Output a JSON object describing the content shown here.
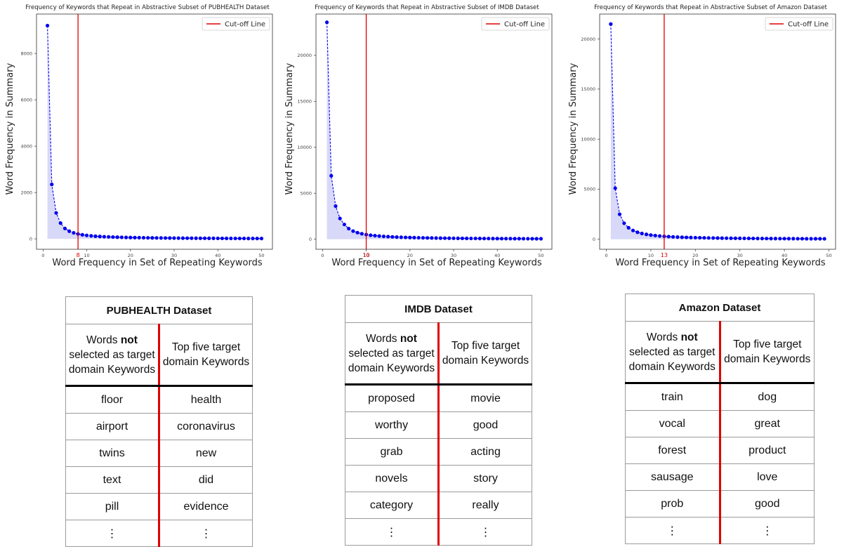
{
  "chart_data": [
    {
      "type": "line",
      "title": "Frequency of Keywords that Repeat in Abstractive Subset of PUBHEALTH Dataset",
      "xlabel": "Word Frequency in Set of Repeating Keywords",
      "ylabel": "Word Frequency in Summary",
      "xlim": [
        -1.5,
        52.5
      ],
      "ylim": [
        -450,
        9700
      ],
      "xticks": [
        0,
        10,
        20,
        30,
        40,
        50
      ],
      "yticks": [
        0,
        2000,
        4000,
        6000,
        8000
      ],
      "cutoff": 8,
      "cutoff_label": "8",
      "legend": "Cut-off Line",
      "x": [
        1,
        2,
        3,
        4,
        5,
        6,
        7,
        8,
        9,
        10,
        11,
        12,
        13,
        14,
        15,
        16,
        17,
        18,
        19,
        20,
        21,
        22,
        23,
        24,
        25,
        26,
        27,
        28,
        29,
        30,
        31,
        32,
        33,
        34,
        35,
        36,
        37,
        38,
        39,
        40,
        41,
        42,
        43,
        44,
        45,
        46,
        47,
        48,
        49,
        50
      ],
      "y": [
        9200,
        2350,
        1120,
        680,
        450,
        330,
        260,
        210,
        175,
        150,
        130,
        115,
        103,
        93,
        85,
        78,
        72,
        67,
        62,
        58,
        54,
        51,
        48,
        45,
        43,
        41,
        39,
        37,
        35,
        33,
        32,
        30,
        29,
        28,
        27,
        26,
        25,
        24,
        23,
        22,
        21,
        20,
        19,
        18,
        18,
        17,
        16,
        16,
        15,
        15
      ]
    },
    {
      "type": "line",
      "title": "Frequency of Keywords that Repeat in Abstractive Subset of IMDB Dataset",
      "xlabel": "Word Frequency in Set of Repeating Keywords",
      "ylabel": "Word Frequency in Summary",
      "xlim": [
        -1.5,
        52.5
      ],
      "ylim": [
        -1100,
        24500
      ],
      "xticks": [
        0,
        10,
        20,
        30,
        40,
        50
      ],
      "yticks": [
        0,
        5000,
        10000,
        15000,
        20000
      ],
      "cutoff": 10,
      "cutoff_label": "10",
      "legend": "Cut-off Line",
      "x": [
        1,
        2,
        3,
        4,
        5,
        6,
        7,
        8,
        9,
        10,
        11,
        12,
        13,
        14,
        15,
        16,
        17,
        18,
        19,
        20,
        21,
        22,
        23,
        24,
        25,
        26,
        27,
        28,
        29,
        30,
        31,
        32,
        33,
        34,
        35,
        36,
        37,
        38,
        39,
        40,
        41,
        42,
        43,
        44,
        45,
        46,
        47,
        48,
        49,
        50
      ],
      "y": [
        23600,
        6900,
        3600,
        2250,
        1600,
        1150,
        880,
        710,
        590,
        500,
        430,
        380,
        340,
        305,
        275,
        250,
        228,
        210,
        195,
        180,
        168,
        157,
        147,
        138,
        130,
        122,
        115,
        109,
        103,
        98,
        93,
        89,
        85,
        81,
        78,
        75,
        72,
        69,
        66,
        64,
        62,
        60,
        58,
        56,
        54,
        52,
        50,
        49,
        47,
        46
      ]
    },
    {
      "type": "line",
      "title": "Frequency of Keywords that Repeat in Abstractive Subset of Amazon Dataset",
      "xlabel": "Word Frequency in Set of Repeating Keywords",
      "ylabel": "Word Frequency in Summary",
      "xlim": [
        -1.5,
        51.5
      ],
      "ylim": [
        -1000,
        22500
      ],
      "xticks": [
        0,
        10,
        20,
        30,
        40,
        50
      ],
      "yticks": [
        0,
        5000,
        10000,
        15000,
        20000
      ],
      "cutoff": 13,
      "cutoff_label": "13",
      "legend": "Cut-off Line",
      "x": [
        1,
        2,
        3,
        4,
        5,
        6,
        7,
        8,
        9,
        10,
        11,
        12,
        13,
        14,
        15,
        16,
        17,
        18,
        19,
        20,
        21,
        22,
        23,
        24,
        25,
        26,
        27,
        28,
        29,
        30,
        31,
        32,
        33,
        34,
        35,
        36,
        37,
        38,
        39,
        40,
        41,
        42,
        43,
        44,
        45,
        46,
        47,
        48,
        49
      ],
      "y": [
        21500,
        5100,
        2500,
        1600,
        1150,
        880,
        700,
        580,
        490,
        420,
        370,
        330,
        295,
        265,
        240,
        220,
        202,
        187,
        174,
        162,
        152,
        143,
        135,
        127,
        120,
        114,
        108,
        103,
        98,
        94,
        90,
        86,
        82,
        79,
        76,
        73,
        70,
        68,
        66,
        64,
        62,
        60,
        58,
        56,
        54,
        53,
        51,
        50,
        48
      ]
    }
  ],
  "tables": [
    {
      "title": "PUBHEALTH Dataset",
      "col1_pre": "Words ",
      "col1_bold": "not",
      "col1_post": "selected as target domain Keywords",
      "col2": "Top five target domain Keywords",
      "rows": [
        [
          "floor",
          "health"
        ],
        [
          "airport",
          "coronavirus"
        ],
        [
          "twins",
          "new"
        ],
        [
          "text",
          "did"
        ],
        [
          "pill",
          "evidence"
        ],
        [
          "⋮",
          "⋮"
        ]
      ]
    },
    {
      "title": "IMDB Dataset",
      "col1_pre": "Words ",
      "col1_bold": "not",
      "col1_post": "selected as target domain Keywords",
      "col2": "Top five target domain Keywords",
      "rows": [
        [
          "proposed",
          "movie"
        ],
        [
          "worthy",
          "good"
        ],
        [
          "grab",
          "acting"
        ],
        [
          "novels",
          "story"
        ],
        [
          "category",
          "really"
        ],
        [
          "⋮",
          "⋮"
        ]
      ]
    },
    {
      "title": "Amazon Dataset",
      "col1_pre": "Words ",
      "col1_bold": "not",
      "col1_post": "selected as target domain Keywords",
      "col2": "Top five target domain Keywords",
      "rows": [
        [
          "train",
          "dog"
        ],
        [
          "vocal",
          "great"
        ],
        [
          "forest",
          "product"
        ],
        [
          "sausage",
          "love"
        ],
        [
          "prob",
          "good"
        ],
        [
          "⋮",
          "⋮"
        ]
      ]
    }
  ],
  "colors": {
    "line": "#0000ee",
    "fill": "#d4d4f7",
    "cutoff": "#e00000"
  }
}
